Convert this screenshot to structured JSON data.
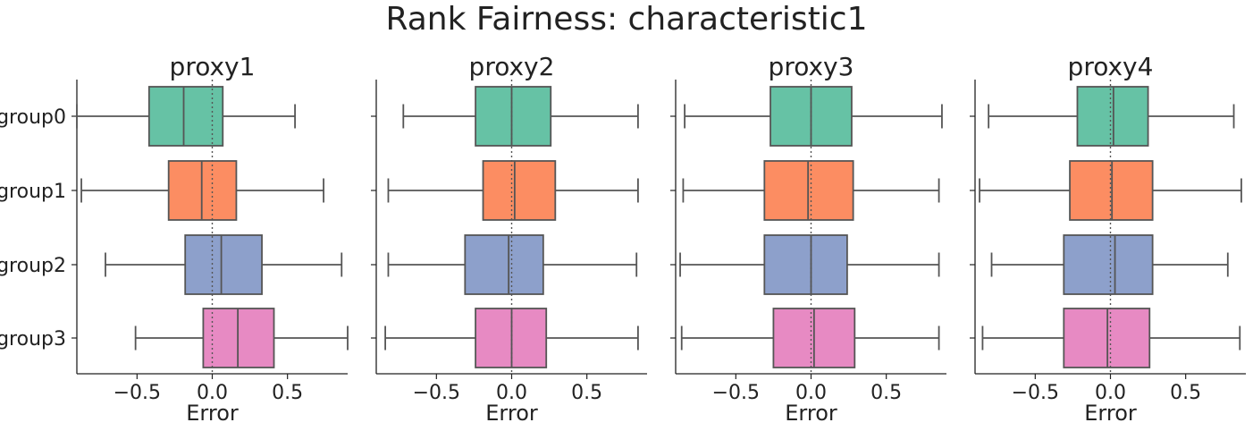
{
  "chart_data": {
    "type": "box",
    "suptitle": "Rank Fairness: characteristic1",
    "xlabel": "Error",
    "categories": [
      "group0",
      "group1",
      "group2",
      "group3"
    ],
    "xlim": [
      -0.9,
      0.9
    ],
    "xticks": [
      -0.5,
      0.0,
      0.5
    ],
    "xtick_labels": [
      "−0.5",
      "0.0",
      "0.5"
    ],
    "reference_line_x": 0.0,
    "colors": [
      "#66c2a5",
      "#fc8d62",
      "#8da0cb",
      "#e78ac3"
    ],
    "panels": [
      {
        "title": "proxy1",
        "boxes": [
          {
            "group": "group0",
            "whislo": -0.9,
            "q1": -0.42,
            "med": -0.19,
            "q3": 0.07,
            "whishi": 0.55
          },
          {
            "group": "group1",
            "whislo": -0.87,
            "q1": -0.29,
            "med": -0.07,
            "q3": 0.16,
            "whishi": 0.74
          },
          {
            "group": "group2",
            "whislo": -0.71,
            "q1": -0.18,
            "med": 0.06,
            "q3": 0.33,
            "whishi": 0.86
          },
          {
            "group": "group3",
            "whislo": -0.51,
            "q1": -0.06,
            "med": 0.17,
            "q3": 0.41,
            "whishi": 0.9
          }
        ]
      },
      {
        "title": "proxy2",
        "boxes": [
          {
            "group": "group0",
            "whislo": -0.72,
            "q1": -0.24,
            "med": 0.0,
            "q3": 0.26,
            "whishi": 0.84
          },
          {
            "group": "group1",
            "whislo": -0.82,
            "q1": -0.19,
            "med": 0.02,
            "q3": 0.29,
            "whishi": 0.84
          },
          {
            "group": "group2",
            "whislo": -0.82,
            "q1": -0.31,
            "med": -0.02,
            "q3": 0.21,
            "whishi": 0.83
          },
          {
            "group": "group3",
            "whislo": -0.84,
            "q1": -0.24,
            "med": 0.0,
            "q3": 0.23,
            "whishi": 0.84
          }
        ]
      },
      {
        "title": "proxy3",
        "boxes": [
          {
            "group": "group0",
            "whislo": -0.84,
            "q1": -0.27,
            "med": 0.0,
            "q3": 0.27,
            "whishi": 0.87
          },
          {
            "group": "group1",
            "whislo": -0.85,
            "q1": -0.31,
            "med": -0.02,
            "q3": 0.28,
            "whishi": 0.85
          },
          {
            "group": "group2",
            "whislo": -0.87,
            "q1": -0.31,
            "med": 0.0,
            "q3": 0.24,
            "whishi": 0.85
          },
          {
            "group": "group3",
            "whislo": -0.86,
            "q1": -0.25,
            "med": 0.02,
            "q3": 0.29,
            "whishi": 0.85
          }
        ]
      },
      {
        "title": "proxy4",
        "boxes": [
          {
            "group": "group0",
            "whislo": -0.81,
            "q1": -0.22,
            "med": 0.02,
            "q3": 0.25,
            "whishi": 0.82
          },
          {
            "group": "group1",
            "whislo": -0.87,
            "q1": -0.27,
            "med": 0.01,
            "q3": 0.28,
            "whishi": 0.87
          },
          {
            "group": "group2",
            "whislo": -0.79,
            "q1": -0.31,
            "med": 0.03,
            "q3": 0.28,
            "whishi": 0.78
          },
          {
            "group": "group3",
            "whislo": -0.85,
            "q1": -0.31,
            "med": -0.02,
            "q3": 0.26,
            "whishi": 0.86
          }
        ]
      }
    ]
  }
}
